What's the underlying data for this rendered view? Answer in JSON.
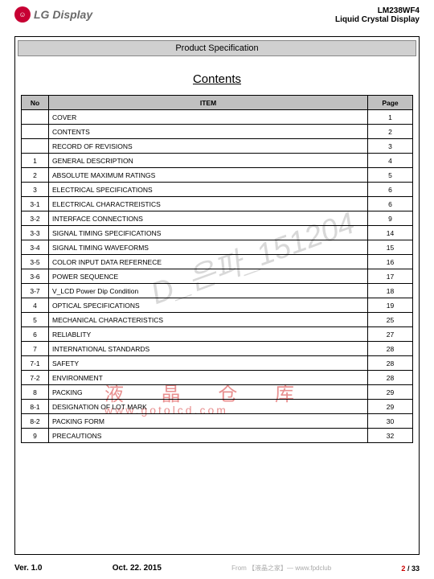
{
  "header": {
    "logo_inner": "☺",
    "logo_text": "LG Display",
    "model": "LM238WF4",
    "product": "Liquid Crystal Display"
  },
  "spec_bar": "Product Specification",
  "contents_title": "Contents",
  "table": {
    "headers": {
      "no": "No",
      "item": "ITEM",
      "page": "Page"
    },
    "rows": [
      {
        "no": "",
        "item": "COVER",
        "page": "1"
      },
      {
        "no": "",
        "item": "CONTENTS",
        "page": "2"
      },
      {
        "no": "",
        "item": "RECORD OF REVISIONS",
        "page": "3"
      },
      {
        "no": "1",
        "item": "GENERAL DESCRIPTION",
        "page": "4"
      },
      {
        "no": "2",
        "item": "ABSOLUTE MAXIMUM RATINGS",
        "page": "5"
      },
      {
        "no": "3",
        "item": "ELECTRICAL SPECIFICATIONS",
        "page": "6"
      },
      {
        "no": "3-1",
        "item": "ELECTRICAL CHARACTREISTICS",
        "page": "6"
      },
      {
        "no": "3-2",
        "item": "INTERFACE CONNECTIONS",
        "page": "9"
      },
      {
        "no": "3-3",
        "item": "SIGNAL TIMING SPECIFICATIONS",
        "page": "14"
      },
      {
        "no": "3-4",
        "item": "SIGNAL TIMING WAVEFORMS",
        "page": "15"
      },
      {
        "no": "3-5",
        "item": "COLOR INPUT DATA REFERNECE",
        "page": "16"
      },
      {
        "no": "3-6",
        "item": "POWER SEQUENCE",
        "page": "17"
      },
      {
        "no": "3-7",
        "item": "V_LCD Power Dip Condition",
        "page": "18"
      },
      {
        "no": "4",
        "item": "OPTICAL SPECIFICATIONS",
        "page": "19"
      },
      {
        "no": "5",
        "item": "MECHANICAL CHARACTERISTICS",
        "page": "25"
      },
      {
        "no": "6",
        "item": "RELIABLITY",
        "page": "27"
      },
      {
        "no": "7",
        "item": "INTERNATIONAL STANDARDS",
        "page": "28"
      },
      {
        "no": "7-1",
        "item": "SAFETY",
        "page": "28"
      },
      {
        "no": "7-2",
        "item": "ENVIRONMENT",
        "page": "28"
      },
      {
        "no": "8",
        "item": "PACKING",
        "page": "29"
      },
      {
        "no": "8-1",
        "item": "DESIGNATION OF LOT MARK",
        "page": "29"
      },
      {
        "no": "8-2",
        "item": "PACKING FORM",
        "page": "30"
      },
      {
        "no": "9",
        "item": "PRECAUTIONS",
        "page": "32"
      }
    ]
  },
  "watermarks": {
    "diag": "D_은파_151204",
    "cjk": "液 晶 仓 库",
    "url": "www.gotolcd.com"
  },
  "footer": {
    "version": "Ver. 1.0",
    "date": "Oct. 22. 2015",
    "from": "From 【液晶之家】— www.fpdclub",
    "page_current": "2",
    "page_sep": " / ",
    "page_total": "33"
  }
}
